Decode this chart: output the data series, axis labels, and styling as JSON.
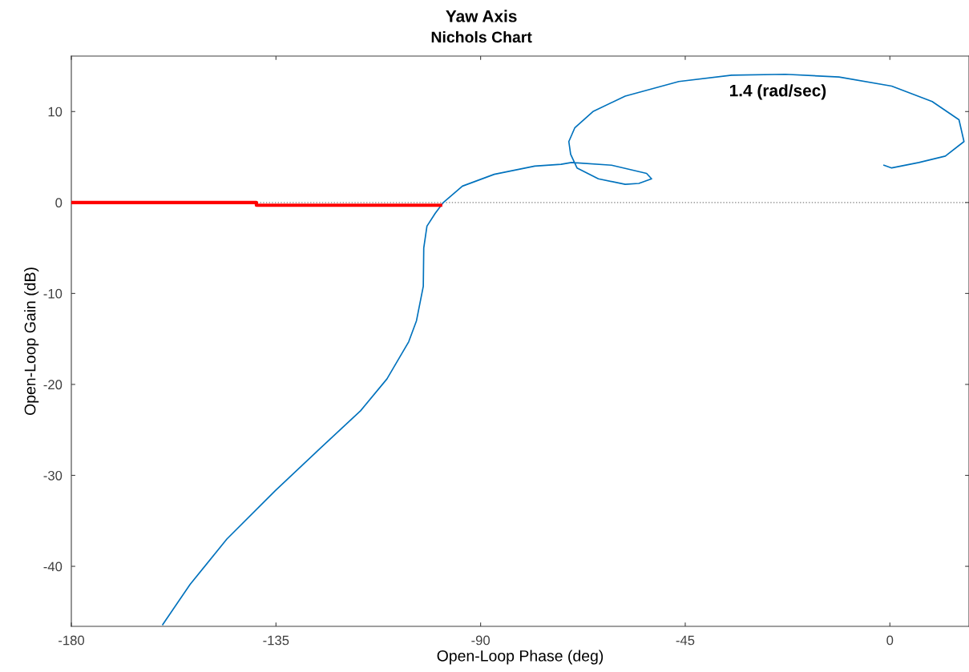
{
  "chart_data": {
    "type": "line",
    "title": "Yaw Axis",
    "subtitle": "Nichols Chart",
    "xlabel": "Open-Loop Phase (deg)",
    "ylabel": "Open-Loop Gain (dB)",
    "xlim": [
      -180,
      17.4
    ],
    "ylim": [
      -46.6,
      16.1
    ],
    "xticks": [
      -180,
      -135,
      -90,
      -45,
      0
    ],
    "yticks": [
      -40,
      -30,
      -20,
      -10,
      0,
      10
    ],
    "grid": false,
    "legend": false,
    "series": [
      {
        "color": "#0072bd",
        "x": [
          -159.9,
          -153.9,
          -145.8,
          -135.2,
          -125.2,
          -116.4,
          -110.6,
          -105.8,
          -104.1,
          -102.6,
          -102.5,
          -101.8,
          -100.0,
          -98.2,
          -94.0,
          -87.0,
          -78.1,
          -72.3,
          -70.0,
          -61.2,
          -53.5,
          -52.4,
          -55.2,
          -58.2,
          -64.1,
          -68.8,
          -70.2,
          -70.6,
          -69.3,
          -65.3,
          -58.2,
          -46.4,
          -34.8,
          -23.0,
          -11.2,
          0.4,
          9.3,
          15.2,
          16.3,
          12.2,
          6.4,
          0.4,
          -1.3
        ],
        "values": [
          -46.4,
          -42.0,
          -37.0,
          -31.7,
          -27.0,
          -22.9,
          -19.4,
          -15.3,
          -13.0,
          -9.2,
          -5.0,
          -2.6,
          -1.2,
          0,
          1.8,
          3.1,
          4.0,
          4.2,
          4.4,
          4.1,
          3.2,
          2.6,
          2.1,
          2.0,
          2.6,
          3.8,
          5.3,
          6.7,
          8.2,
          10.0,
          11.7,
          13.3,
          14.0,
          14.1,
          13.8,
          12.8,
          11.1,
          9.1,
          6.7,
          5.1,
          4.4,
          3.8,
          4.1
        ]
      },
      {
        "color": "#ff0000",
        "x": [
          -180,
          -139.3,
          -139.3,
          -98.8
        ],
        "values": [
          0,
          0,
          -0.3,
          -0.3
        ]
      }
    ],
    "ref_lines": [
      {
        "axis": "y",
        "value": 0,
        "color": "#808080",
        "line_style": "dotted"
      }
    ],
    "annotations": [
      "1.4 (rad/sec)"
    ]
  }
}
